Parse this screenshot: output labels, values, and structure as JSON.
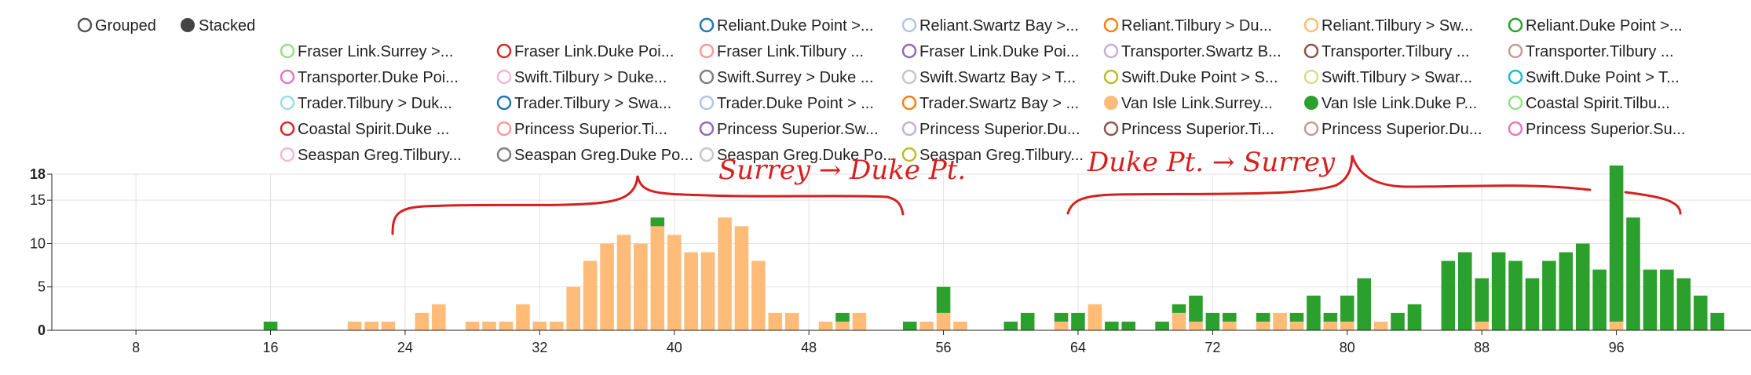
{
  "controls": {
    "grouped_label": "Grouped",
    "stacked_label": "Stacked",
    "selected": "Stacked"
  },
  "legend": [
    {
      "label": "Reliant.Duke Point >...",
      "color": "#1f77b4",
      "filled": false
    },
    {
      "label": "Reliant.Swartz Bay >...",
      "color": "#aec7e8",
      "filled": false
    },
    {
      "label": "Reliant.Tilbury > Du...",
      "color": "#ff7f0e",
      "filled": false
    },
    {
      "label": "Reliant.Tilbury > Sw...",
      "color": "#ffbb78",
      "filled": false
    },
    {
      "label": "Reliant.Duke Point >...",
      "color": "#2ca02c",
      "filled": false
    },
    {
      "label": "Fraser Link.Surrey >...",
      "color": "#98df8a",
      "filled": false
    },
    {
      "label": "Fraser Link.Duke Poi...",
      "color": "#d62728",
      "filled": false
    },
    {
      "label": "Fraser Link.Tilbury ...",
      "color": "#ff9896",
      "filled": false
    },
    {
      "label": "Fraser Link.Duke Poi...",
      "color": "#9467bd",
      "filled": false
    },
    {
      "label": "Transporter.Swartz B...",
      "color": "#c5b0d5",
      "filled": false
    },
    {
      "label": "Transporter.Tilbury ...",
      "color": "#8c564b",
      "filled": false
    },
    {
      "label": "Transporter.Tilbury ...",
      "color": "#c49c94",
      "filled": false
    },
    {
      "label": "Transporter.Duke Poi...",
      "color": "#e377c2",
      "filled": false
    },
    {
      "label": "Swift.Tilbury > Duke...",
      "color": "#f7b6d2",
      "filled": false
    },
    {
      "label": "Swift.Surrey > Duke ...",
      "color": "#7f7f7f",
      "filled": false
    },
    {
      "label": "Swift.Swartz Bay > T...",
      "color": "#c7c7c7",
      "filled": false
    },
    {
      "label": "Swift.Duke Point > S...",
      "color": "#bcbd22",
      "filled": false
    },
    {
      "label": "Swift.Tilbury > Swar...",
      "color": "#dbdb8d",
      "filled": false
    },
    {
      "label": "Swift.Duke Point > T...",
      "color": "#17becf",
      "filled": false
    },
    {
      "label": "Trader.Tilbury > Duk...",
      "color": "#9edae5",
      "filled": false
    },
    {
      "label": "Trader.Tilbury > Swa...",
      "color": "#1f77b4",
      "filled": false
    },
    {
      "label": "Trader.Duke Point > ...",
      "color": "#aec7e8",
      "filled": false
    },
    {
      "label": "Trader.Swartz Bay > ...",
      "color": "#ff7f0e",
      "filled": false
    },
    {
      "label": "Van Isle Link.Surrey...",
      "color": "#ffbb78",
      "filled": true
    },
    {
      "label": "Van Isle Link.Duke P...",
      "color": "#2ca02c",
      "filled": true
    },
    {
      "label": "Coastal Spirit.Tilbu...",
      "color": "#98df8a",
      "filled": false
    },
    {
      "label": "Coastal Spirit.Duke ...",
      "color": "#d62728",
      "filled": false
    },
    {
      "label": "Princess Superior.Ti...",
      "color": "#ff9896",
      "filled": false
    },
    {
      "label": "Princess Superior.Sw...",
      "color": "#9467bd",
      "filled": false
    },
    {
      "label": "Princess Superior.Du...",
      "color": "#c5b0d5",
      "filled": false
    },
    {
      "label": "Princess Superior.Ti...",
      "color": "#8c564b",
      "filled": false
    },
    {
      "label": "Princess Superior.Du...",
      "color": "#c49c94",
      "filled": false
    },
    {
      "label": "Princess Superior.Su...",
      "color": "#e377c2",
      "filled": false
    },
    {
      "label": "Seaspan Greg.Tilbury...",
      "color": "#f7b6d2",
      "filled": false
    },
    {
      "label": "Seaspan Greg.Duke Po...",
      "color": "#7f7f7f",
      "filled": false
    },
    {
      "label": "Seaspan Greg.Duke Po...",
      "color": "#c7c7c7",
      "filled": false
    },
    {
      "label": "Seaspan Greg.Tilbury...",
      "color": "#bcbd22",
      "filled": false
    }
  ],
  "annotations": {
    "left_label": "Surrey → Duke Pt.",
    "right_label": "Duke Pt. → Surrey",
    "color": "#d62020"
  },
  "chart_data": {
    "type": "bar",
    "stacked": true,
    "title": "",
    "xlabel": "",
    "ylabel": "",
    "xlim": [
      3,
      104
    ],
    "ylim": [
      0,
      18
    ],
    "x_ticks": [
      8,
      16,
      24,
      32,
      40,
      48,
      56,
      64,
      72,
      80,
      88,
      96
    ],
    "y_ticks": [
      0,
      5,
      10,
      15,
      18
    ],
    "grid": true,
    "series": [
      {
        "name": "Van Isle Link.Surrey...",
        "color": "#ffbb78",
        "points": [
          [
            21,
            1
          ],
          [
            22,
            1
          ],
          [
            23,
            1
          ],
          [
            25,
            2
          ],
          [
            26,
            3
          ],
          [
            28,
            1
          ],
          [
            29,
            1
          ],
          [
            30,
            1
          ],
          [
            31,
            3
          ],
          [
            32,
            1
          ],
          [
            33,
            1
          ],
          [
            34,
            5
          ],
          [
            35,
            8
          ],
          [
            36,
            10
          ],
          [
            37,
            11
          ],
          [
            38,
            10
          ],
          [
            39,
            12
          ],
          [
            40,
            11
          ],
          [
            41,
            9
          ],
          [
            42,
            9
          ],
          [
            43,
            13
          ],
          [
            44,
            12
          ],
          [
            45,
            8
          ],
          [
            46,
            2
          ],
          [
            47,
            2
          ],
          [
            49,
            1
          ],
          [
            50,
            1
          ],
          [
            51,
            2
          ],
          [
            55,
            1
          ],
          [
            56,
            2
          ],
          [
            57,
            1
          ],
          [
            63,
            1
          ],
          [
            65,
            3
          ],
          [
            70,
            2
          ],
          [
            71,
            1
          ],
          [
            73,
            1
          ],
          [
            75,
            1
          ],
          [
            76,
            2
          ],
          [
            77,
            1
          ],
          [
            79,
            1
          ],
          [
            80,
            1
          ],
          [
            82,
            1
          ],
          [
            88,
            1
          ],
          [
            96,
            1
          ]
        ]
      },
      {
        "name": "Van Isle Link.Duke P...",
        "color": "#2ca02c",
        "points": [
          [
            16,
            1
          ],
          [
            39,
            1
          ],
          [
            50,
            1
          ],
          [
            54,
            1
          ],
          [
            56,
            3
          ],
          [
            60,
            1
          ],
          [
            61,
            2
          ],
          [
            63,
            1
          ],
          [
            64,
            2
          ],
          [
            66,
            1
          ],
          [
            67,
            1
          ],
          [
            69,
            1
          ],
          [
            70,
            1
          ],
          [
            71,
            3
          ],
          [
            72,
            2
          ],
          [
            73,
            1
          ],
          [
            75,
            1
          ],
          [
            77,
            1
          ],
          [
            78,
            4
          ],
          [
            79,
            1
          ],
          [
            80,
            3
          ],
          [
            81,
            6
          ],
          [
            83,
            2
          ],
          [
            84,
            3
          ],
          [
            86,
            8
          ],
          [
            87,
            9
          ],
          [
            88,
            5
          ],
          [
            89,
            9
          ],
          [
            90,
            8
          ],
          [
            91,
            6
          ],
          [
            92,
            8
          ],
          [
            93,
            9
          ],
          [
            94,
            10
          ],
          [
            95,
            7
          ],
          [
            96,
            18
          ],
          [
            97,
            13
          ],
          [
            98,
            7
          ],
          [
            99,
            7
          ],
          [
            100,
            6
          ],
          [
            101,
            4
          ],
          [
            102,
            2
          ]
        ]
      }
    ]
  }
}
